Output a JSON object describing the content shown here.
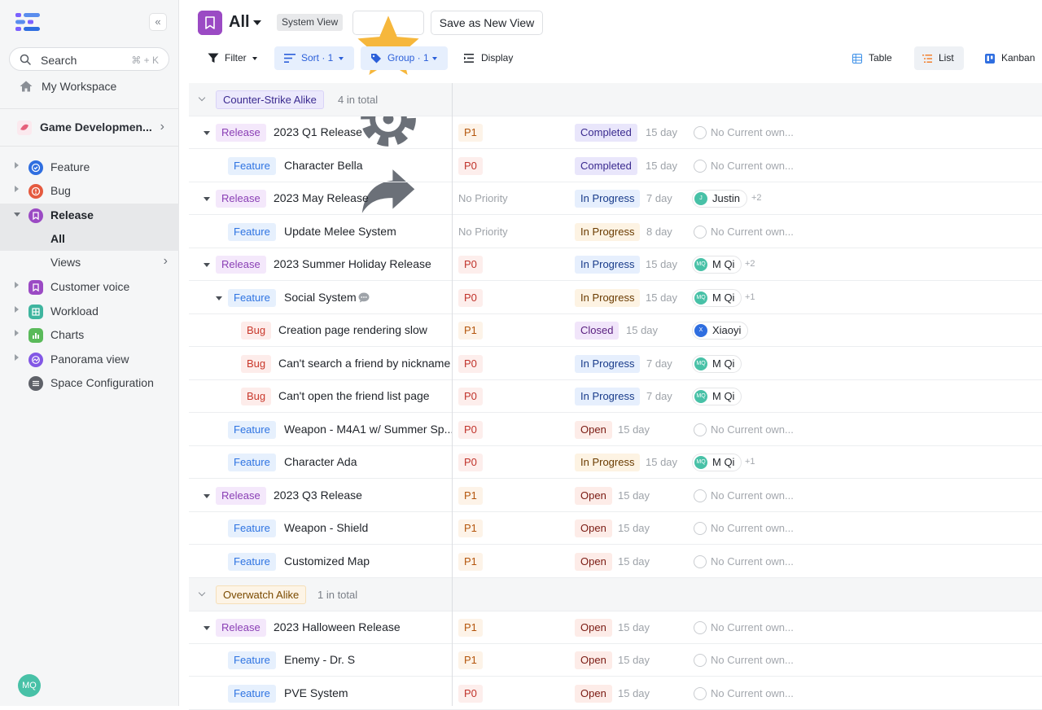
{
  "sidebar": {
    "collapse_label": "«",
    "search": {
      "label": "Search",
      "shortcut": "⌘ + K"
    },
    "workspace_label": "My Workspace",
    "project_label": "Game Developmen...",
    "nav": [
      {
        "label": "Feature",
        "color": "#2f6ee0",
        "icon": "feature-icon"
      },
      {
        "label": "Bug",
        "color": "#e55a3f",
        "icon": "bug-icon"
      },
      {
        "label": "Release",
        "color": "#9b4ac4",
        "icon": "release-icon"
      },
      {
        "label": "All"
      },
      {
        "label": "Views"
      },
      {
        "label": "Customer voice",
        "color": "#9b4ac4",
        "icon": "customer-voice-icon"
      },
      {
        "label": "Workload",
        "color": "#3fb59f",
        "icon": "workload-icon"
      },
      {
        "label": "Charts",
        "color": "#5aba5a",
        "icon": "charts-icon"
      },
      {
        "label": "Panorama view",
        "color": "#8257e5",
        "icon": "panorama-icon"
      },
      {
        "label": "Space Configuration",
        "color": "#5e6168",
        "icon": "space-config-icon"
      }
    ],
    "user_initials": "MQ"
  },
  "header": {
    "title": "All",
    "badge": "System View",
    "save_label": "Save as New View"
  },
  "toolbar": {
    "filter": "Filter",
    "sort": "Sort · 1",
    "group": "Group · 1",
    "display": "Display",
    "views": {
      "table": "Table",
      "list": "List",
      "kanban": "Kanban"
    }
  },
  "groups": [
    {
      "label": "Counter-Strike Alike",
      "count": "4 in total"
    },
    {
      "label": "Overwatch Alike",
      "count": "1 in total"
    }
  ],
  "rows": [
    {
      "type": "Release",
      "title": "2023 Q1 Release",
      "priority": "P1",
      "status": "Completed",
      "duration": "15 day",
      "owner": "No Current own..."
    },
    {
      "type": "Feature",
      "title": "Character Bella",
      "priority": "P0",
      "status": "Completed",
      "duration": "15 day",
      "owner": "No Current own..."
    },
    {
      "type": "Release",
      "title": "2023 May Release",
      "priority": "No Priority",
      "status": "In Progress",
      "duration": "7 day",
      "owner": "Justin",
      "owner_initials": "J",
      "extra": "+2"
    },
    {
      "type": "Feature",
      "title": "Update Melee System",
      "priority": "No Priority",
      "status": "In Progress",
      "duration": "8 day",
      "owner": "No Current own..."
    },
    {
      "type": "Release",
      "title": "2023 Summer Holiday Release",
      "priority": "P0",
      "status": "In Progress",
      "duration": "15 day",
      "owner": "M Qi",
      "owner_initials": "MQ",
      "extra": "+2"
    },
    {
      "type": "Feature",
      "title": "Social System",
      "priority": "P0",
      "status": "In Progress",
      "duration": "15 day",
      "owner": "M Qi",
      "owner_initials": "MQ",
      "extra": "+1"
    },
    {
      "type": "Bug",
      "title": "Creation page rendering slow",
      "priority": "P1",
      "status": "Closed",
      "duration": "15 day",
      "owner": "Xiaoyi",
      "owner_initials": "X"
    },
    {
      "type": "Bug",
      "title": "Can't search a friend by nickname",
      "priority": "P0",
      "status": "In Progress",
      "duration": "7 day",
      "owner": "M Qi",
      "owner_initials": "MQ"
    },
    {
      "type": "Bug",
      "title": "Can't open the friend list page",
      "priority": "P0",
      "status": "In Progress",
      "duration": "7 day",
      "owner": "M Qi",
      "owner_initials": "MQ"
    },
    {
      "type": "Feature",
      "title": "Weapon - M4A1 w/ Summer Sp...",
      "priority": "P0",
      "status": "Open",
      "duration": "15 day",
      "owner": "No Current own..."
    },
    {
      "type": "Feature",
      "title": "Character Ada",
      "priority": "P0",
      "status": "In Progress",
      "duration": "15 day",
      "owner": "M Qi",
      "owner_initials": "MQ",
      "extra": "+1"
    },
    {
      "type": "Release",
      "title": "2023 Q3 Release",
      "priority": "P1",
      "status": "Open",
      "duration": "15 day",
      "owner": "No Current own..."
    },
    {
      "type": "Feature",
      "title": "Weapon - Shield",
      "priority": "P1",
      "status": "Open",
      "duration": "15 day",
      "owner": "No Current own..."
    },
    {
      "type": "Feature",
      "title": "Customized Map",
      "priority": "P1",
      "status": "Open",
      "duration": "15 day",
      "owner": "No Current own..."
    },
    {
      "type": "Release",
      "title": "2023 Halloween Release",
      "priority": "P1",
      "status": "Open",
      "duration": "15 day",
      "owner": "No Current own..."
    },
    {
      "type": "Feature",
      "title": "Enemy - Dr. S",
      "priority": "P1",
      "status": "Open",
      "duration": "15 day",
      "owner": "No Current own..."
    },
    {
      "type": "Feature",
      "title": "PVE System",
      "priority": "P0",
      "status": "Open",
      "duration": "15 day",
      "owner": "No Current own..."
    }
  ]
}
